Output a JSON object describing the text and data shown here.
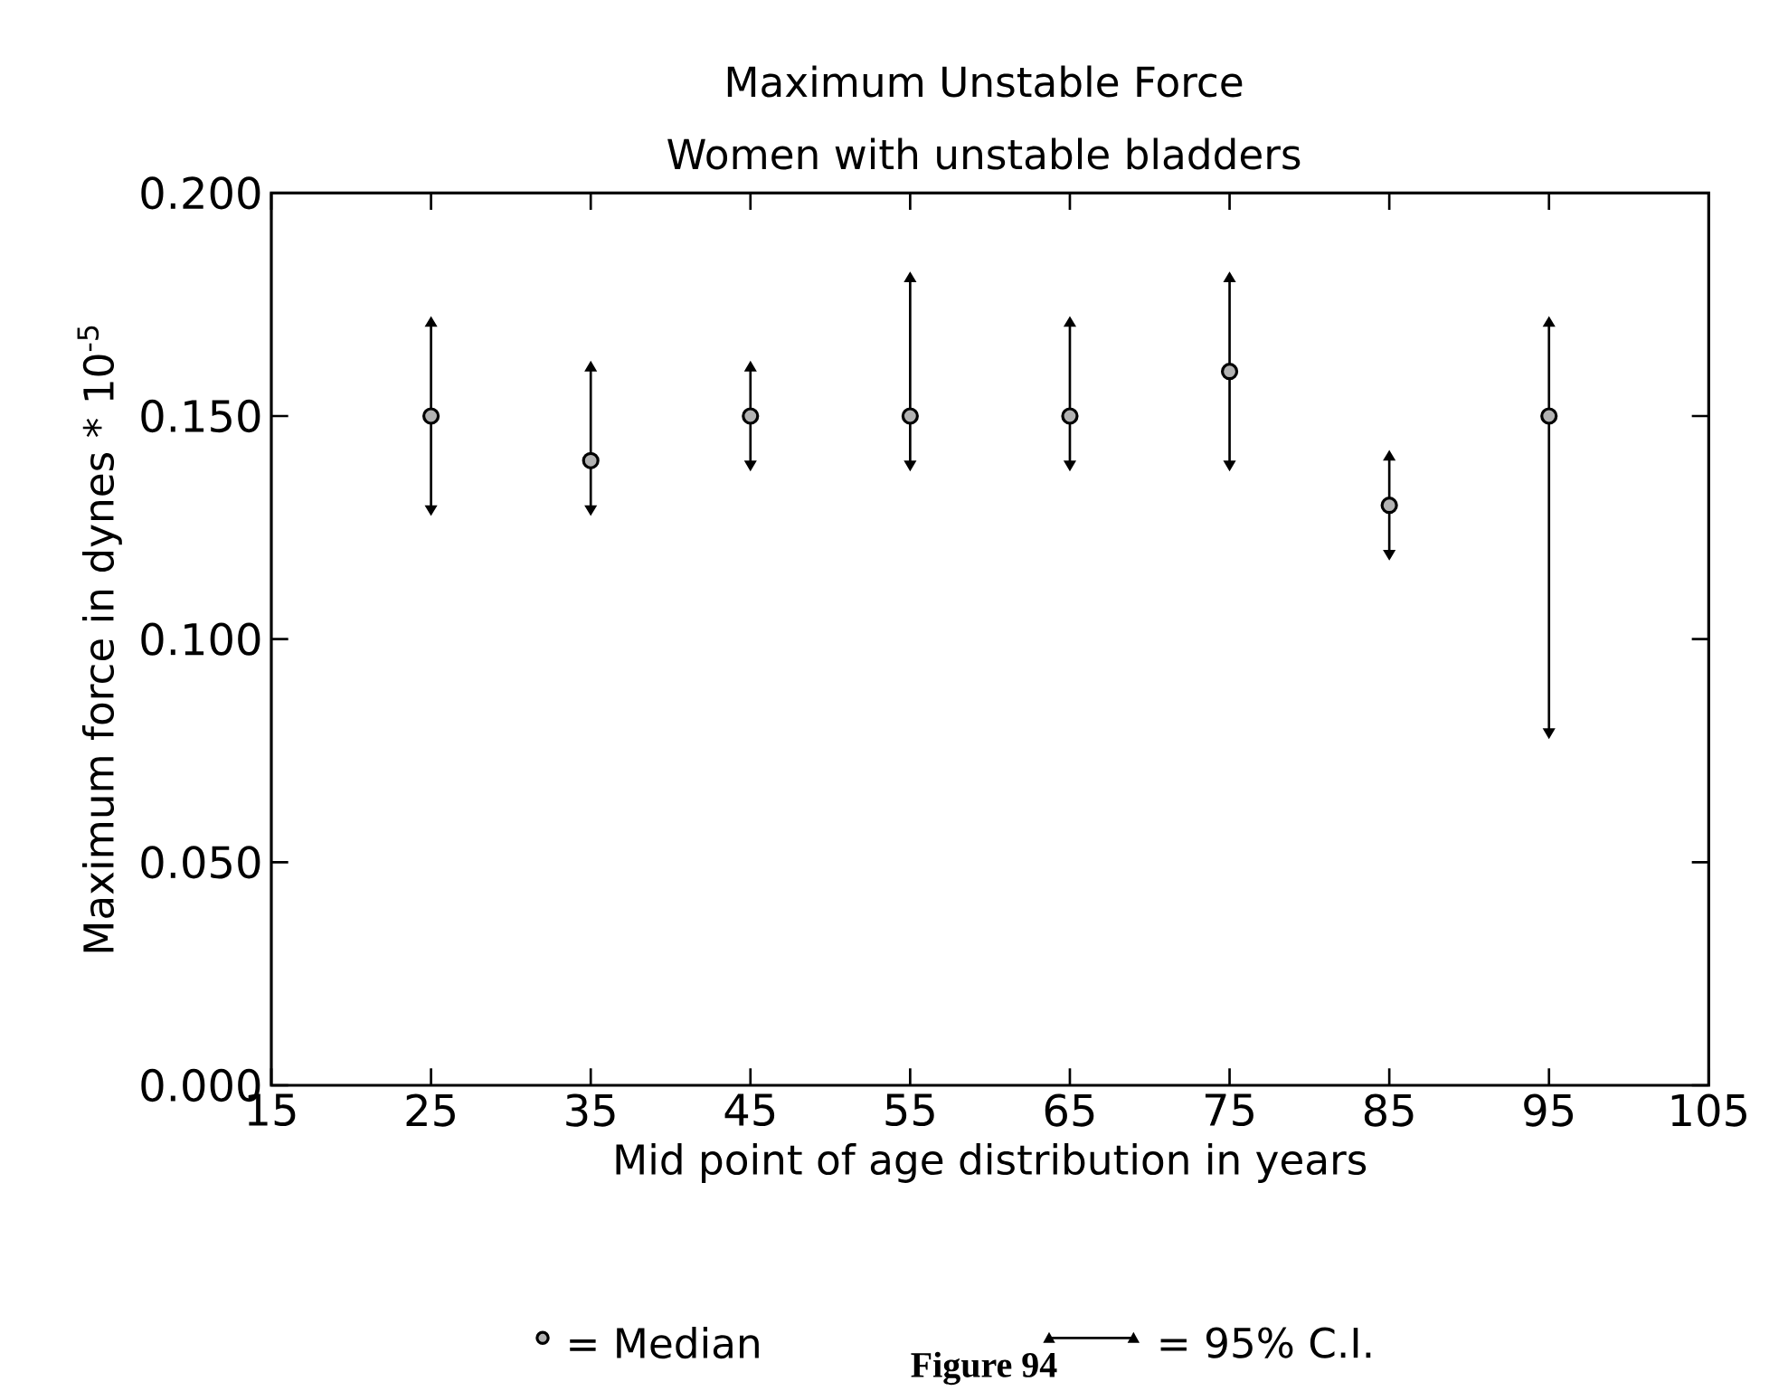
{
  "chart_data": {
    "type": "scatter",
    "title": "Maximum Unstable Force",
    "subtitle": "Women with unstable bladders",
    "xlabel": "Mid point of age distribution in years",
    "ylabel": "Maximum force in dynes * 10$^{-5}$",
    "x": [
      25,
      35,
      45,
      55,
      65,
      75,
      85,
      95
    ],
    "series": [
      {
        "name": "= Median",
        "color": "#000000",
        "values": [
          0.15,
          0.14,
          0.15,
          0.15,
          0.15,
          0.16,
          0.13,
          0.15
        ],
        "errors": [
          [
            0.13,
            0.17
          ],
          [
            0.13,
            0.16
          ],
          [
            0.14,
            0.16
          ],
          [
            0.14,
            0.18
          ],
          [
            0.14,
            0.17
          ],
          [
            0.14,
            0.18
          ],
          [
            0.12,
            0.14
          ],
          [
            0.08,
            0.17
          ]
        ]
      }
    ],
    "xlim": [
      15,
      105
    ],
    "xticks": [
      15,
      25,
      35,
      45,
      55,
      65,
      75,
      85,
      95,
      105
    ],
    "ylim": [
      0,
      0.2
    ],
    "yticks": [
      {
        "value": 0,
        "label": "0.000"
      },
      {
        "value": 0.05,
        "label": "0.050"
      },
      {
        "value": 0.1,
        "label": "0.100"
      },
      {
        "value": 0.15,
        "label": "0.150"
      },
      {
        "value": 0.2,
        "label": "0.200"
      }
    ],
    "marker": "circle",
    "grid": false,
    "legend": "bottom",
    "annotations": [
      "= 95% C.I.",
      "Figure 94"
    ]
  }
}
